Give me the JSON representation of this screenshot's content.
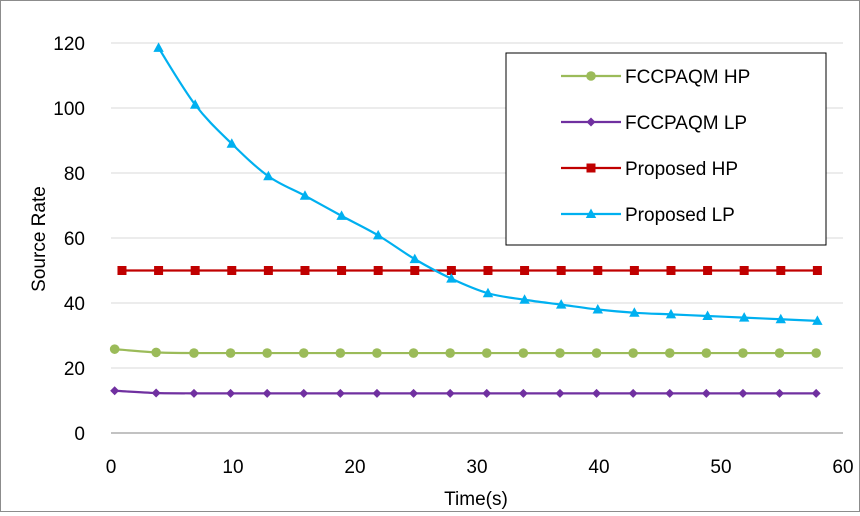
{
  "chart_data": {
    "type": "line",
    "title": "",
    "xlabel": "Time(s)",
    "ylabel": "Source Rate",
    "xlim": [
      0,
      60
    ],
    "ylim": [
      0,
      120
    ],
    "xticks": [
      0,
      10,
      20,
      30,
      40,
      50,
      60
    ],
    "yticks": [
      0,
      20,
      40,
      60,
      80,
      100,
      120
    ],
    "grid": "horizontal",
    "legend_position": "top-right",
    "series": [
      {
        "name": "FCCPAQM HP",
        "color": "#9bbb59",
        "marker": "circle",
        "x": [
          0.3,
          3.7,
          6.8,
          9.8,
          12.8,
          15.8,
          18.8,
          21.8,
          24.8,
          27.8,
          30.8,
          33.8,
          36.8,
          39.8,
          42.8,
          45.8,
          48.8,
          51.8,
          54.8,
          57.8
        ],
        "y": [
          25.8,
          24.8,
          24.6,
          24.6,
          24.6,
          24.6,
          24.6,
          24.6,
          24.6,
          24.6,
          24.6,
          24.6,
          24.6,
          24.6,
          24.6,
          24.6,
          24.6,
          24.6,
          24.6,
          24.6
        ]
      },
      {
        "name": "FCCPAQM LP",
        "color": "#7030a0",
        "marker": "diamond",
        "x": [
          0.3,
          3.7,
          6.8,
          9.8,
          12.8,
          15.8,
          18.8,
          21.8,
          24.8,
          27.8,
          30.8,
          33.8,
          36.8,
          39.8,
          42.8,
          45.8,
          48.8,
          51.8,
          54.8,
          57.8
        ],
        "y": [
          13.0,
          12.3,
          12.2,
          12.2,
          12.2,
          12.2,
          12.2,
          12.2,
          12.2,
          12.2,
          12.2,
          12.2,
          12.2,
          12.2,
          12.2,
          12.2,
          12.2,
          12.2,
          12.2,
          12.2
        ]
      },
      {
        "name": "Proposed HP",
        "color": "#c00000",
        "marker": "square",
        "x": [
          0.9,
          3.9,
          6.9,
          9.9,
          12.9,
          15.9,
          18.9,
          21.9,
          24.9,
          27.9,
          30.9,
          33.9,
          36.9,
          39.9,
          42.9,
          45.9,
          48.9,
          51.9,
          54.9,
          57.9
        ],
        "y": [
          50,
          50,
          50,
          50,
          50,
          50,
          50,
          50,
          50,
          50,
          50,
          50,
          50,
          50,
          50,
          50,
          50,
          50,
          50,
          50
        ]
      },
      {
        "name": "Proposed LP",
        "color": "#00b0f0",
        "marker": "triangle",
        "x": [
          3.9,
          6.9,
          9.9,
          12.9,
          15.9,
          18.9,
          21.9,
          24.9,
          27.9,
          30.9,
          33.9,
          36.9,
          39.9,
          42.9,
          45.9,
          48.9,
          51.9,
          54.9,
          57.9
        ],
        "y": [
          118.5,
          101,
          89,
          79,
          73,
          66.8,
          60.8,
          53.5,
          47.5,
          43,
          41,
          39.5,
          38,
          37,
          36.5,
          36,
          35.5,
          35,
          34.5
        ]
      }
    ]
  }
}
